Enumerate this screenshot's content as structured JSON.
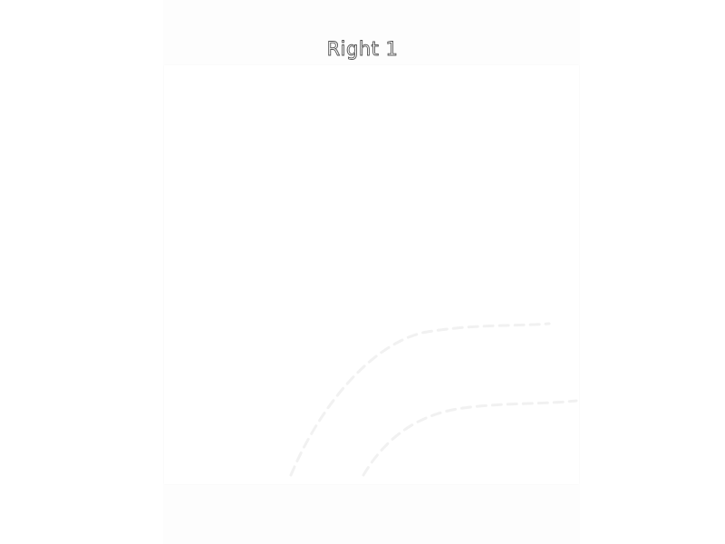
{
  "title": "Right 1",
  "colors": {
    "background": "#ffffff",
    "panel": "#fdfdfd",
    "title_outline": "#555555",
    "curve_stroke": "#f1f1f1"
  }
}
